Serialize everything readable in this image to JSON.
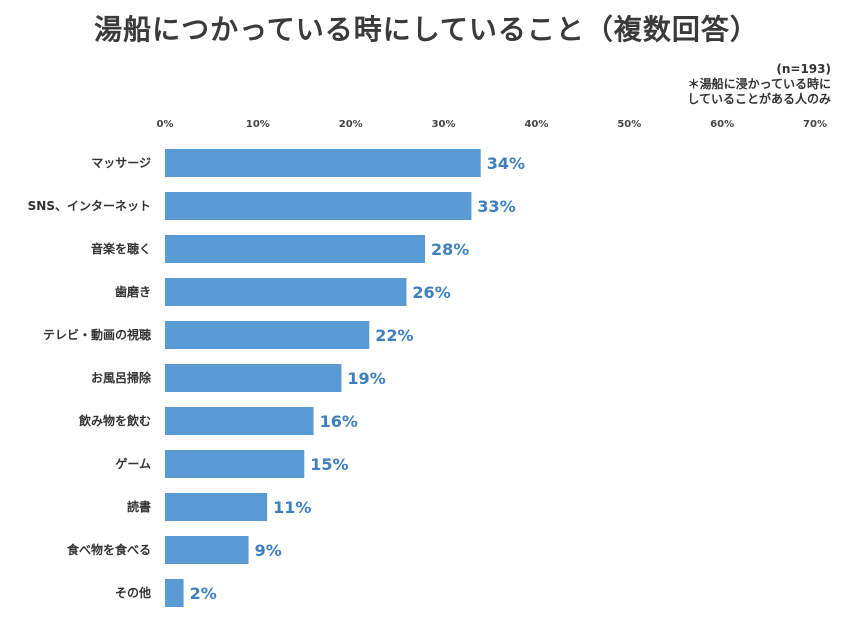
{
  "chart_data": {
    "type": "bar",
    "orientation": "horizontal",
    "title": "湯船につかっている時にしていること（複数回答）",
    "sample_size": "(n=193)",
    "note_lines": [
      "＊湯船に浸かっている時に",
      "していることがある人のみ"
    ],
    "categories": [
      "マッサージ",
      "SNS、インターネット",
      "音楽を聴く",
      "歯磨き",
      "テレビ・動画の視聴",
      "お風呂掃除",
      "飲み物を飲む",
      "ゲーム",
      "読書",
      "食べ物を食べる",
      "その他"
    ],
    "values": [
      34,
      33,
      28,
      26,
      22,
      19,
      16,
      15,
      11,
      9,
      2
    ],
    "value_labels": [
      "34%",
      "33%",
      "28%",
      "26%",
      "22%",
      "19%",
      "16%",
      "15%",
      "11%",
      "9%",
      "2%"
    ],
    "x_ticks": [
      0,
      10,
      20,
      30,
      40,
      50,
      60,
      70
    ],
    "x_tick_labels": [
      "0%",
      "10%",
      "20%",
      "30%",
      "40%",
      "50%",
      "60%",
      "70%"
    ],
    "xlim": [
      0,
      70
    ],
    "xaxis_position": "top",
    "grid": false,
    "colors": {
      "bar": "#5b9bd5",
      "value_label": "#3e7fbf"
    }
  }
}
